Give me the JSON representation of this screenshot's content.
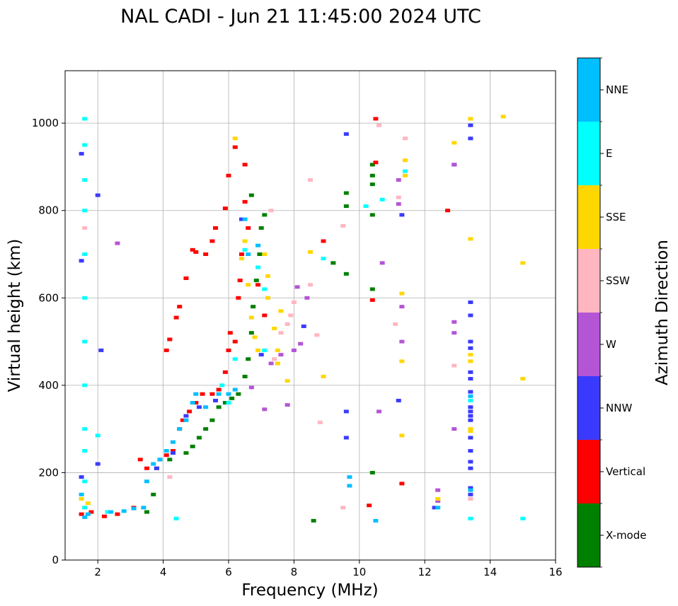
{
  "chart_data": {
    "type": "scatter",
    "title": "NAL CADI - Jun 21 11:45:00 2024 UTC",
    "xlabel": "Frequency (MHz)",
    "ylabel": "Virtual height (km)",
    "xlim": [
      1,
      16
    ],
    "ylim": [
      0,
      1120
    ],
    "xticks": [
      2,
      4,
      6,
      8,
      10,
      12,
      14,
      16
    ],
    "yticks": [
      0,
      200,
      400,
      600,
      800,
      1000
    ],
    "grid": true,
    "colorbar": {
      "label": "Azimuth Direction",
      "position": "right",
      "categories": [
        {
          "name": "X-mode",
          "color": "#008000"
        },
        {
          "name": "Vertical",
          "color": "#ff0000"
        },
        {
          "name": "NNW",
          "color": "#3a3aff"
        },
        {
          "name": "W",
          "color": "#b455d6"
        },
        {
          "name": "SSW",
          "color": "#ffb6c1"
        },
        {
          "name": "SSE",
          "color": "#ffd700"
        },
        {
          "name": "E",
          "color": "#00ffff"
        },
        {
          "name": "NNE",
          "color": "#00bfff"
        }
      ]
    },
    "series": [
      {
        "name": "X-mode",
        "points": [
          [
            3.5,
            110
          ],
          [
            3.7,
            150
          ],
          [
            3.8,
            210
          ],
          [
            4.2,
            230
          ],
          [
            4.7,
            245
          ],
          [
            4.9,
            260
          ],
          [
            5.1,
            280
          ],
          [
            5.3,
            300
          ],
          [
            5.5,
            320
          ],
          [
            5.7,
            350
          ],
          [
            5.9,
            360
          ],
          [
            6.1,
            370
          ],
          [
            6.3,
            380
          ],
          [
            6.5,
            420
          ],
          [
            6.6,
            460
          ],
          [
            6.7,
            520
          ],
          [
            6.75,
            580
          ],
          [
            6.85,
            640
          ],
          [
            6.95,
            700
          ],
          [
            7.0,
            760
          ],
          [
            7.1,
            790
          ],
          [
            6.7,
            835
          ],
          [
            8.6,
            90
          ],
          [
            9.2,
            680
          ],
          [
            9.6,
            655
          ],
          [
            9.6,
            810
          ],
          [
            10.4,
            200
          ],
          [
            10.4,
            620
          ],
          [
            10.4,
            790
          ],
          [
            10.4,
            860
          ],
          [
            10.4,
            880
          ],
          [
            10.4,
            905
          ],
          [
            9.6,
            840
          ]
        ]
      },
      {
        "name": "Vertical",
        "points": [
          [
            1.5,
            105
          ],
          [
            1.8,
            110
          ],
          [
            2.2,
            100
          ],
          [
            2.6,
            105
          ],
          [
            3.1,
            120
          ],
          [
            3.3,
            230
          ],
          [
            3.5,
            210
          ],
          [
            3.9,
            230
          ],
          [
            4.1,
            240
          ],
          [
            4.3,
            250
          ],
          [
            4.5,
            300
          ],
          [
            4.6,
            320
          ],
          [
            4.8,
            340
          ],
          [
            5.0,
            360
          ],
          [
            5.2,
            380
          ],
          [
            5.5,
            380
          ],
          [
            5.7,
            390
          ],
          [
            5.9,
            430
          ],
          [
            6.0,
            480
          ],
          [
            6.05,
            520
          ],
          [
            6.2,
            500
          ],
          [
            6.3,
            600
          ],
          [
            6.35,
            640
          ],
          [
            6.4,
            700
          ],
          [
            6.6,
            760
          ],
          [
            6.5,
            820
          ],
          [
            6.2,
            945
          ],
          [
            6.5,
            905
          ],
          [
            6.0,
            880
          ],
          [
            5.9,
            805
          ],
          [
            5.6,
            760
          ],
          [
            5.5,
            730
          ],
          [
            5.3,
            700
          ],
          [
            5.0,
            705
          ],
          [
            4.9,
            710
          ],
          [
            4.7,
            645
          ],
          [
            4.4,
            555
          ],
          [
            4.5,
            580
          ],
          [
            4.2,
            505
          ],
          [
            4.1,
            480
          ],
          [
            6.9,
            630
          ],
          [
            7.1,
            560
          ],
          [
            8.9,
            730
          ],
          [
            10.3,
            125
          ],
          [
            10.4,
            595
          ],
          [
            10.5,
            910
          ],
          [
            10.5,
            1010
          ],
          [
            11.3,
            175
          ],
          [
            12.7,
            800
          ]
        ]
      },
      {
        "name": "NNW",
        "points": [
          [
            1.5,
            930
          ],
          [
            1.5,
            685
          ],
          [
            1.5,
            190
          ],
          [
            2.0,
            835
          ],
          [
            2.1,
            480
          ],
          [
            2.0,
            220
          ],
          [
            3.8,
            210
          ],
          [
            4.3,
            245
          ],
          [
            4.7,
            330
          ],
          [
            5.1,
            350
          ],
          [
            5.6,
            365
          ],
          [
            6.4,
            780
          ],
          [
            7.0,
            470
          ],
          [
            8.3,
            535
          ],
          [
            9.6,
            975
          ],
          [
            9.6,
            340
          ],
          [
            9.6,
            280
          ],
          [
            11.2,
            365
          ],
          [
            11.3,
            790
          ],
          [
            12.3,
            120
          ],
          [
            12.9,
            905
          ],
          [
            13.4,
            995
          ],
          [
            13.4,
            965
          ],
          [
            13.4,
            590
          ],
          [
            13.4,
            560
          ],
          [
            13.4,
            500
          ],
          [
            13.4,
            485
          ],
          [
            13.4,
            430
          ],
          [
            13.4,
            415
          ],
          [
            13.4,
            385
          ],
          [
            13.4,
            350
          ],
          [
            13.4,
            340
          ],
          [
            13.4,
            330
          ],
          [
            13.4,
            320
          ],
          [
            13.4,
            280
          ],
          [
            13.4,
            250
          ],
          [
            13.4,
            225
          ],
          [
            13.4,
            210
          ],
          [
            13.4,
            165
          ],
          [
            13.4,
            150
          ]
        ]
      },
      {
        "name": "W",
        "points": [
          [
            2.6,
            725
          ],
          [
            6.7,
            395
          ],
          [
            7.1,
            345
          ],
          [
            7.3,
            450
          ],
          [
            7.6,
            470
          ],
          [
            7.8,
            355
          ],
          [
            8.0,
            480
          ],
          [
            8.2,
            495
          ],
          [
            8.4,
            600
          ],
          [
            8.1,
            625
          ],
          [
            10.6,
            340
          ],
          [
            10.7,
            680
          ],
          [
            11.2,
            815
          ],
          [
            11.3,
            500
          ],
          [
            11.3,
            580
          ],
          [
            11.2,
            870
          ],
          [
            12.4,
            160
          ],
          [
            12.4,
            135
          ],
          [
            12.9,
            520
          ],
          [
            12.9,
            545
          ],
          [
            12.9,
            300
          ],
          [
            12.9,
            905
          ]
        ]
      },
      {
        "name": "SSW",
        "points": [
          [
            1.6,
            760
          ],
          [
            4.2,
            190
          ],
          [
            7.4,
            460
          ],
          [
            7.6,
            520
          ],
          [
            7.8,
            540
          ],
          [
            7.9,
            560
          ],
          [
            8.0,
            590
          ],
          [
            7.3,
            800
          ],
          [
            8.5,
            630
          ],
          [
            8.5,
            870
          ],
          [
            8.7,
            515
          ],
          [
            8.8,
            315
          ],
          [
            9.5,
            765
          ],
          [
            9.5,
            120
          ],
          [
            10.6,
            995
          ],
          [
            11.1,
            540
          ],
          [
            11.2,
            830
          ],
          [
            11.4,
            965
          ],
          [
            12.4,
            140
          ],
          [
            12.9,
            445
          ],
          [
            13.4,
            140
          ]
        ]
      },
      {
        "name": "SSE",
        "points": [
          [
            1.5,
            140
          ],
          [
            1.6,
            120
          ],
          [
            1.7,
            130
          ],
          [
            6.2,
            965
          ],
          [
            6.5,
            730
          ],
          [
            6.4,
            690
          ],
          [
            6.6,
            630
          ],
          [
            6.7,
            555
          ],
          [
            6.8,
            510
          ],
          [
            6.9,
            480
          ],
          [
            7.1,
            700
          ],
          [
            7.2,
            650
          ],
          [
            7.2,
            600
          ],
          [
            7.4,
            530
          ],
          [
            7.5,
            480
          ],
          [
            7.5,
            450
          ],
          [
            7.6,
            570
          ],
          [
            7.8,
            410
          ],
          [
            8.5,
            705
          ],
          [
            8.9,
            420
          ],
          [
            11.3,
            285
          ],
          [
            11.3,
            455
          ],
          [
            11.3,
            610
          ],
          [
            11.4,
            880
          ],
          [
            11.4,
            915
          ],
          [
            12.4,
            140
          ],
          [
            12.9,
            955
          ],
          [
            13.4,
            1010
          ],
          [
            13.4,
            735
          ],
          [
            13.4,
            470
          ],
          [
            13.4,
            455
          ],
          [
            13.4,
            300
          ],
          [
            13.4,
            295
          ],
          [
            14.4,
            1015
          ],
          [
            15.0,
            680
          ],
          [
            15.0,
            415
          ]
        ]
      },
      {
        "name": "E",
        "points": [
          [
            1.6,
            1010
          ],
          [
            1.6,
            950
          ],
          [
            1.6,
            870
          ],
          [
            1.6,
            800
          ],
          [
            1.6,
            700
          ],
          [
            1.6,
            600
          ],
          [
            1.6,
            500
          ],
          [
            1.6,
            400
          ],
          [
            1.6,
            300
          ],
          [
            1.6,
            250
          ],
          [
            1.6,
            180
          ],
          [
            1.6,
            120
          ],
          [
            2.0,
            285
          ],
          [
            2.3,
            110
          ],
          [
            4.4,
            95
          ],
          [
            5.8,
            400
          ],
          [
            6.0,
            360
          ],
          [
            6.2,
            460
          ],
          [
            6.5,
            710
          ],
          [
            6.9,
            670
          ],
          [
            7.1,
            620
          ],
          [
            7.1,
            480
          ],
          [
            8.9,
            690
          ],
          [
            10.2,
            810
          ],
          [
            10.7,
            825
          ],
          [
            11.4,
            890
          ],
          [
            13.4,
            95
          ],
          [
            13.4,
            365
          ],
          [
            15.0,
            95
          ]
        ]
      },
      {
        "name": "NNE",
        "points": [
          [
            1.5,
            150
          ],
          [
            1.6,
            98
          ],
          [
            1.7,
            105
          ],
          [
            2.4,
            110
          ],
          [
            2.8,
            112
          ],
          [
            3.1,
            118
          ],
          [
            3.4,
            120
          ],
          [
            3.5,
            180
          ],
          [
            3.7,
            220
          ],
          [
            3.9,
            230
          ],
          [
            4.1,
            250
          ],
          [
            4.3,
            270
          ],
          [
            4.5,
            300
          ],
          [
            4.7,
            320
          ],
          [
            4.9,
            360
          ],
          [
            5.0,
            380
          ],
          [
            5.3,
            350
          ],
          [
            5.7,
            380
          ],
          [
            6.0,
            380
          ],
          [
            6.2,
            390
          ],
          [
            6.5,
            780
          ],
          [
            6.6,
            700
          ],
          [
            6.9,
            720
          ],
          [
            9.7,
            190
          ],
          [
            9.7,
            170
          ],
          [
            10.5,
            90
          ],
          [
            12.4,
            120
          ],
          [
            13.4,
            375
          ],
          [
            13.4,
            160
          ]
        ]
      }
    ]
  }
}
